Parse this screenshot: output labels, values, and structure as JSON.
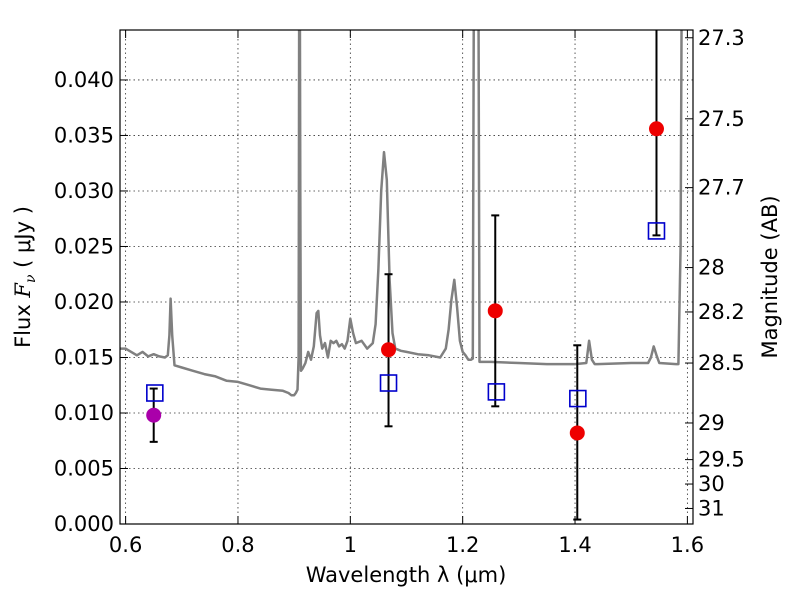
{
  "chart_data": {
    "type": "scatter",
    "title": "",
    "xlabel": "Wavelength  λ (μm)",
    "ylabel": "Flux  F_ν  ( μJy )",
    "ylabel_parts": {
      "prefix": "Flux  ",
      "symbol": "F",
      "subscript": "ν",
      "suffix": "  ( μJy )"
    },
    "y2label": "Magnitude (AB)",
    "xlim": [
      0.59,
      1.61
    ],
    "ylim": [
      0.0,
      0.0445
    ],
    "grid": true,
    "x_ticks": [
      {
        "value": 0.6,
        "label": "0.6"
      },
      {
        "value": 0.8,
        "label": "0.8"
      },
      {
        "value": 1.0,
        "label": "1"
      },
      {
        "value": 1.2,
        "label": "1.2"
      },
      {
        "value": 1.4,
        "label": "1.4"
      },
      {
        "value": 1.6,
        "label": "1.6"
      }
    ],
    "y_ticks": [
      {
        "value": 0.0,
        "label": "0.000"
      },
      {
        "value": 0.005,
        "label": "0.005"
      },
      {
        "value": 0.01,
        "label": "0.010"
      },
      {
        "value": 0.015,
        "label": "0.015"
      },
      {
        "value": 0.02,
        "label": "0.020"
      },
      {
        "value": 0.025,
        "label": "0.025"
      },
      {
        "value": 0.03,
        "label": "0.030"
      },
      {
        "value": 0.035,
        "label": "0.035"
      },
      {
        "value": 0.04,
        "label": "0.040"
      }
    ],
    "y2_ticks": [
      {
        "label": "27.3",
        "flux": 0.0438
      },
      {
        "label": "27.5",
        "flux": 0.0365
      },
      {
        "label": "27.7",
        "flux": 0.0303
      },
      {
        "label": "28",
        "flux": 0.0231
      },
      {
        "label": "28.2",
        "flux": 0.0191
      },
      {
        "label": "28.5",
        "flux": 0.0145
      },
      {
        "label": "29",
        "flux": 0.0091
      },
      {
        "label": "29.5",
        "flux": 0.0058
      },
      {
        "label": "30",
        "flux": 0.0036
      },
      {
        "label": "31",
        "flux": 0.0014
      }
    ],
    "series": [
      {
        "name": "model-spectrum",
        "kind": "line",
        "color": "#808080",
        "x": [
          0.59,
          0.6,
          0.62,
          0.63,
          0.64,
          0.65,
          0.66,
          0.67,
          0.675,
          0.678,
          0.68,
          0.683,
          0.687,
          0.7,
          0.72,
          0.74,
          0.76,
          0.78,
          0.8,
          0.82,
          0.84,
          0.86,
          0.88,
          0.89,
          0.895,
          0.9,
          0.903,
          0.906,
          0.908,
          0.9085,
          0.909,
          0.91,
          0.911,
          0.912,
          0.915,
          0.92,
          0.925,
          0.93,
          0.935,
          0.94,
          0.943,
          0.946,
          0.95,
          0.955,
          0.96,
          0.965,
          0.97,
          0.975,
          0.98,
          0.985,
          0.99,
          0.995,
          1.0,
          1.005,
          1.01,
          1.02,
          1.03,
          1.04,
          1.045,
          1.05,
          1.055,
          1.06,
          1.065,
          1.07,
          1.075,
          1.08,
          1.09,
          1.1,
          1.12,
          1.14,
          1.16,
          1.17,
          1.175,
          1.18,
          1.185,
          1.19,
          1.195,
          1.2,
          1.205,
          1.21,
          1.215,
          1.218,
          1.22,
          1.222,
          1.225,
          1.228,
          1.23,
          1.25,
          1.3,
          1.35,
          1.4,
          1.42,
          1.425,
          1.43,
          1.435,
          1.44,
          1.5,
          1.53,
          1.535,
          1.54,
          1.545,
          1.55,
          1.58,
          1.584,
          1.588,
          1.59,
          1.6,
          1.61
        ],
        "y": [
          0.0158,
          0.0158,
          0.0152,
          0.0155,
          0.0151,
          0.0153,
          0.0151,
          0.015,
          0.0152,
          0.017,
          0.0203,
          0.017,
          0.0143,
          0.0141,
          0.0138,
          0.0135,
          0.0133,
          0.0129,
          0.0128,
          0.0125,
          0.0122,
          0.0121,
          0.012,
          0.0118,
          0.0116,
          0.0116,
          0.0118,
          0.0121,
          0.015,
          0.03,
          0.05,
          0.05,
          0.03,
          0.0138,
          0.014,
          0.0145,
          0.0155,
          0.0148,
          0.016,
          0.019,
          0.0192,
          0.017,
          0.0158,
          0.0163,
          0.015,
          0.0165,
          0.0163,
          0.0165,
          0.016,
          0.0162,
          0.0158,
          0.0165,
          0.0185,
          0.0172,
          0.0163,
          0.0165,
          0.0158,
          0.0163,
          0.018,
          0.023,
          0.03,
          0.0335,
          0.031,
          0.022,
          0.0172,
          0.0158,
          0.0156,
          0.0155,
          0.0153,
          0.0152,
          0.015,
          0.0158,
          0.0175,
          0.0202,
          0.022,
          0.0195,
          0.0165,
          0.0155,
          0.0152,
          0.0148,
          0.0148,
          0.0149,
          0.05,
          0.05,
          0.05,
          0.05,
          0.0146,
          0.0146,
          0.0145,
          0.0144,
          0.0144,
          0.0145,
          0.0165,
          0.0148,
          0.0144,
          0.0144,
          0.0145,
          0.0145,
          0.015,
          0.016,
          0.0152,
          0.0145,
          0.0144,
          0.0144,
          0.025,
          0.05,
          0.05,
          0.05
        ]
      },
      {
        "name": "observed-flux",
        "kind": "errorbar",
        "color": "#ee0000",
        "points": [
          {
            "x": 1.068,
            "y": 0.0157,
            "err_low": 0.0069,
            "err_high": 0.0068
          },
          {
            "x": 1.258,
            "y": 0.0192,
            "err_low": 0.0086,
            "err_high": 0.0086
          },
          {
            "x": 1.404,
            "y": 0.0082,
            "err_low": 0.0078,
            "err_high": 0.0079
          },
          {
            "x": 1.545,
            "y": 0.0356,
            "err_low": 0.0096,
            "err_high": 0.01
          }
        ]
      },
      {
        "name": "optical-flux",
        "kind": "errorbar",
        "color": "#aa00aa",
        "points": [
          {
            "x": 0.65,
            "y": 0.0098,
            "err_low": 0.0024,
            "err_high": 0.0024
          }
        ]
      },
      {
        "name": "model-photometry",
        "kind": "squares",
        "color": "#0000cc",
        "points": [
          {
            "x": 0.652,
            "y": 0.0118
          },
          {
            "x": 1.068,
            "y": 0.0127
          },
          {
            "x": 1.26,
            "y": 0.0119
          },
          {
            "x": 1.405,
            "y": 0.0113
          },
          {
            "x": 1.545,
            "y": 0.0264
          }
        ]
      }
    ]
  }
}
